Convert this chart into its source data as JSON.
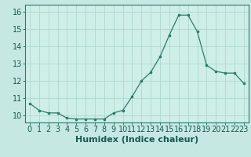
{
  "x": [
    0,
    1,
    2,
    3,
    4,
    5,
    6,
    7,
    8,
    9,
    10,
    11,
    12,
    13,
    14,
    15,
    16,
    17,
    18,
    19,
    20,
    21,
    22,
    23
  ],
  "y": [
    10.7,
    10.3,
    10.15,
    10.15,
    9.85,
    9.8,
    9.8,
    9.8,
    9.8,
    10.15,
    10.3,
    11.1,
    12.0,
    12.5,
    13.4,
    14.65,
    15.8,
    15.8,
    14.85,
    12.9,
    12.55,
    12.45,
    12.45,
    11.85
  ],
  "xlabel": "Humidex (Indice chaleur)",
  "xlim": [
    -0.5,
    23.5
  ],
  "ylim": [
    9.6,
    16.4
  ],
  "yticks": [
    10,
    11,
    12,
    13,
    14,
    15,
    16
  ],
  "xticks": [
    0,
    1,
    2,
    3,
    4,
    5,
    6,
    7,
    8,
    9,
    10,
    11,
    12,
    13,
    14,
    15,
    16,
    17,
    18,
    19,
    20,
    21,
    22,
    23
  ],
  "line_color": "#2d7b6d",
  "marker_color": "#2d7b6d",
  "bg_color": "#c5e8e2",
  "plot_bg_color": "#ceeee8",
  "grid_color": "#b0d8d0",
  "xlabel_fontsize": 8,
  "tick_fontsize": 7
}
